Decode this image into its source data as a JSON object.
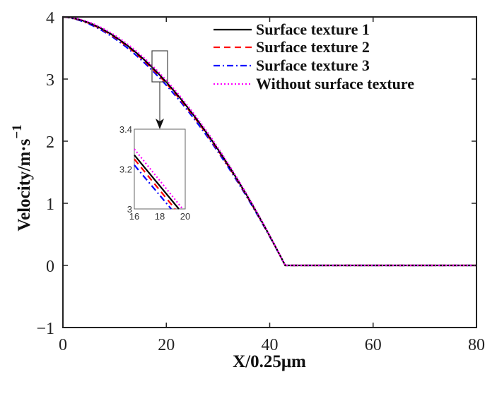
{
  "chart_data": {
    "type": "line",
    "title": "",
    "xlabel": "X/0.25μm",
    "ylabel": "Velocity/m·s",
    "ylabel_sup": "−1",
    "xlim": [
      0,
      80
    ],
    "ylim": [
      -1,
      4
    ],
    "xticks": [
      "0",
      "20",
      "40",
      "60",
      "80"
    ],
    "yticks": [
      "−1",
      "0",
      "1",
      "2",
      "3",
      "4"
    ],
    "grid": false,
    "legend_position": "upper right",
    "series": [
      {
        "name": "Surface texture 1",
        "color": "#000000",
        "style": "solid",
        "x": [
          0,
          10,
          20,
          30,
          40,
          43,
          80
        ],
        "y": [
          4.0,
          3.55,
          2.95,
          2.05,
          0.5,
          0,
          0
        ]
      },
      {
        "name": "Surface texture 2",
        "color": "#ff0000",
        "style": "dashed",
        "x": [
          0,
          10,
          20,
          30,
          40,
          43,
          80
        ],
        "y": [
          4.0,
          3.54,
          2.93,
          2.03,
          0.48,
          0,
          0
        ]
      },
      {
        "name": "Surface texture 3",
        "color": "#0000ff",
        "style": "dashdot",
        "x": [
          0,
          10,
          20,
          30,
          40,
          43,
          80
        ],
        "y": [
          4.0,
          3.51,
          2.9,
          2.0,
          0.46,
          0,
          0
        ]
      },
      {
        "name": "Without surface texture",
        "color": "#ff00ff",
        "style": "dotted",
        "x": [
          0,
          10,
          20,
          30,
          40,
          43,
          80
        ],
        "y": [
          4.0,
          3.57,
          2.98,
          2.08,
          0.52,
          0,
          0
        ]
      }
    ],
    "inset": {
      "xlim": [
        16,
        20
      ],
      "ylim": [
        3,
        3.4
      ],
      "xticks": [
        "16",
        "18",
        "20"
      ],
      "yticks": [
        "3",
        "3.2",
        "3.4"
      ],
      "zoom_region": {
        "x": [
          17.5,
          20.5
        ],
        "y": [
          2.95,
          3.45
        ]
      },
      "series_lines": [
        {
          "name": "Surface texture 1",
          "y_at_16": 3.27,
          "x_at_3": 19.5
        },
        {
          "name": "Surface texture 2",
          "y_at_16": 3.25,
          "x_at_3": 19.2
        },
        {
          "name": "Surface texture 3",
          "y_at_16": 3.22,
          "x_at_3": 18.9
        },
        {
          "name": "Without surface texture",
          "y_at_16": 3.3,
          "x_at_3": 19.8
        }
      ]
    }
  }
}
